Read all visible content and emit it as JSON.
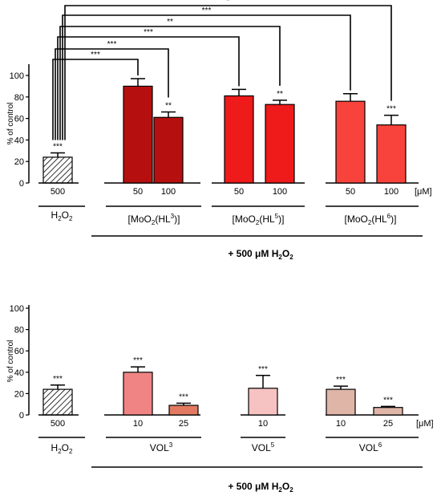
{
  "chart_data": [
    {
      "type": "bar",
      "ylabel": "% of control",
      "ylim": [
        0,
        100
      ],
      "yticks": [
        0,
        20,
        40,
        60,
        80,
        100
      ],
      "unit": "[μM]",
      "bars": [
        {
          "x": "500",
          "value": 24,
          "err": 4,
          "color": "#ffffff",
          "hatch": true,
          "sig": "***"
        },
        {
          "x": "50",
          "value": 90,
          "err": 7,
          "color": "#b5100f",
          "sig": ""
        },
        {
          "x": "100",
          "value": 61,
          "err": 5,
          "color": "#b5100f",
          "sig": "**"
        },
        {
          "x": "50",
          "value": 81,
          "err": 6,
          "color": "#ef1a1a",
          "sig": ""
        },
        {
          "x": "100",
          "value": 73,
          "err": 4,
          "color": "#ef1a1a",
          "sig": "**"
        },
        {
          "x": "50",
          "value": 76,
          "err": 7,
          "color": "#f7433b",
          "sig": ""
        },
        {
          "x": "100",
          "value": 54,
          "err": 9,
          "color": "#f7433b",
          "sig": "***"
        }
      ],
      "groups": [
        {
          "label": "H",
          "sub": "2",
          "label2": "O",
          "sub2": "2"
        },
        {
          "label": "[MoO",
          "sub": "2",
          "label2": "(HL",
          "sup": "3",
          "label3": ")]"
        },
        {
          "label": "[MoO",
          "sub": "2",
          "label2": "(HL",
          "sup": "5",
          "label3": ")]"
        },
        {
          "label": "[MoO",
          "sub": "2",
          "label2": "(HL",
          "sup": "6",
          "label3": ")]"
        }
      ],
      "brackets": [
        "***",
        "***",
        "***",
        "**",
        "***",
        "*"
      ],
      "footer": {
        "a": "+ 500 μM H",
        "sub": "2",
        "b": "O",
        "sub2": "2"
      }
    },
    {
      "type": "bar",
      "ylabel": "% of control",
      "ylim": [
        0,
        100
      ],
      "yticks": [
        0,
        20,
        40,
        60,
        80,
        100
      ],
      "unit": "[μM]",
      "bars": [
        {
          "x": "500",
          "value": 24,
          "err": 4,
          "color": "#ffffff",
          "hatch": true,
          "sig": "***"
        },
        {
          "x": "10",
          "value": 40,
          "err": 5,
          "color": "#f08484",
          "sig": "***"
        },
        {
          "x": "25",
          "value": 9,
          "err": 2,
          "color": "#e27a62",
          "sig": "***"
        },
        {
          "x": "10",
          "value": 25,
          "err": 12,
          "color": "#f7c2c2",
          "sig": "***"
        },
        {
          "x": "10",
          "value": 24,
          "err": 3,
          "color": "#dfb5a8",
          "sig": "***"
        },
        {
          "x": "25",
          "value": 7,
          "err": 1,
          "color": "#dfb5a8",
          "sig": "***"
        }
      ],
      "groups": [
        {
          "label": "H",
          "sub": "2",
          "label2": "O",
          "sub2": "2"
        },
        {
          "label": "VOL",
          "sup": "3"
        },
        {
          "label": "VOL",
          "sup": "5"
        },
        {
          "label": "VOL",
          "sup": "6"
        }
      ],
      "footer": {
        "a": "+ 500 μM H",
        "sub": "2",
        "b": "O",
        "sub2": "2"
      }
    }
  ]
}
